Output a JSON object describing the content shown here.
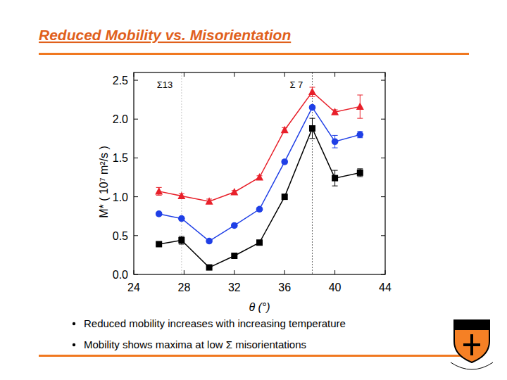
{
  "slide": {
    "title": "Reduced Mobility vs. Misorientation",
    "bullets": [
      "Reduced mobility increases with increasing temperature",
      "Mobility shows maxima at low Σ misorientations"
    ]
  },
  "chart_data": {
    "type": "line",
    "x_label": "θ (°)",
    "y_label": "M* ( 10⁷ m²/s )",
    "x": [
      26,
      27.8,
      30,
      32,
      34,
      36,
      38.2,
      40,
      42
    ],
    "series": [
      {
        "color": "#000000",
        "marker": "square",
        "values": [
          0.39,
          0.44,
          0.09,
          0.24,
          0.41,
          1.0,
          1.88,
          1.24,
          1.31
        ],
        "errors": [
          0.02,
          0.05,
          0.02,
          0.02,
          0.02,
          0.02,
          0.13,
          0.1,
          0.05
        ]
      },
      {
        "color": "#1f3fe6",
        "marker": "circle",
        "values": [
          0.78,
          0.72,
          0.43,
          0.63,
          0.84,
          1.45,
          2.15,
          1.71,
          1.8
        ],
        "errors": [
          0.02,
          0.02,
          0.02,
          0.02,
          0.02,
          0.02,
          0.02,
          0.08,
          0.04
        ]
      },
      {
        "color": "#e8202a",
        "marker": "triangle",
        "values": [
          1.07,
          1.01,
          0.94,
          1.06,
          1.25,
          1.86,
          2.35,
          2.09,
          2.16
        ],
        "errors": [
          0.05,
          0.03,
          0.03,
          0.02,
          0.02,
          0.03,
          0.06,
          0.03,
          0.15
        ]
      }
    ],
    "xlim": [
      24,
      44
    ],
    "xticks": [
      24,
      28,
      32,
      36,
      40,
      44
    ],
    "ylim": [
      0,
      2.6
    ],
    "yticks": [
      {
        "value": 0,
        "label": "0.0"
      },
      0.5,
      {
        "value": 1,
        "label": "1.0"
      },
      1.5,
      {
        "value": 2,
        "label": "2.0"
      },
      2.5
    ],
    "annotations": [
      {
        "text": "Σ13",
        "x": 27.8
      },
      {
        "text": "Σ 7",
        "x": 38.2
      }
    ],
    "grid": false
  }
}
